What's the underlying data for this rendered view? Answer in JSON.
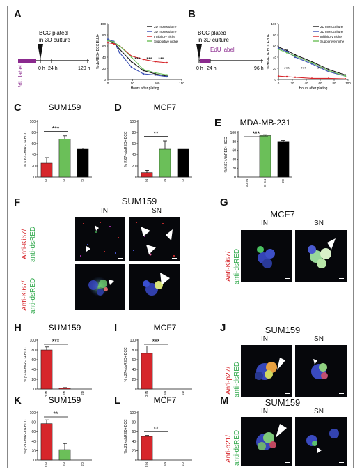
{
  "panels": {
    "A": "A",
    "B": "B",
    "C": "C",
    "D": "D",
    "E": "E",
    "F": "F",
    "G": "G",
    "H": "H",
    "I": "I",
    "J": "J",
    "K": "K",
    "L": "L",
    "M": "M"
  },
  "timeline_A": {
    "plated": "BCC plated",
    "culture": "in 3D culture",
    "edu": "EdU label",
    "ticks": [
      "0 h",
      "24 h",
      "120 h"
    ]
  },
  "timeline_B": {
    "plated": "BCC plated",
    "culture": "in 3D culture",
    "edu": "EdU label",
    "ticks": [
      "0 h",
      "24 h",
      "96 h"
    ]
  },
  "legend": [
    {
      "name": "2D monoculture",
      "color": "#1a1a1a"
    },
    {
      "name": "3D monoculture",
      "color": "#3a4fb5"
    },
    {
      "name": "Inhibitory niche",
      "color": "#d6262b"
    },
    {
      "name": "Supportive niche",
      "color": "#6bbf59"
    }
  ],
  "line_A": {
    "ylabel": "% dsRED+ BCC EdU+",
    "xlabel": "Hours after plating",
    "yticks": [
      "0",
      "20",
      "40",
      "60",
      "80",
      "100"
    ],
    "xticks": [
      "0",
      "50",
      "100",
      "150"
    ],
    "sig": "***"
  },
  "line_B": {
    "ylabel": "% dsRED+ BCC EdU+",
    "xlabel": "Hours after plating",
    "yticks": [
      "0",
      "20",
      "40",
      "60",
      "80",
      "100"
    ],
    "xticks": [
      "0",
      "20",
      "40",
      "60",
      "80",
      "100"
    ],
    "sig": "***"
  },
  "chart_data": [
    {
      "panel": "A",
      "type": "line",
      "xlabel": "Hours after plating",
      "ylabel": "% dsRED+ BCC EdU+",
      "xlim": [
        0,
        150
      ],
      "ylim": [
        0,
        100
      ],
      "series": [
        {
          "name": "2D monoculture",
          "x": [
            0,
            12,
            24,
            48,
            72,
            96,
            120
          ],
          "y": [
            70,
            66,
            54,
            32,
            16,
            10,
            6
          ]
        },
        {
          "name": "3D monoculture",
          "x": [
            0,
            12,
            24,
            48,
            72,
            96,
            120
          ],
          "y": [
            72,
            68,
            48,
            22,
            10,
            8,
            5
          ]
        },
        {
          "name": "Inhibitory niche",
          "x": [
            0,
            12,
            24,
            48,
            72,
            96,
            120
          ],
          "y": [
            66,
            64,
            60,
            42,
            36,
            32,
            30
          ]
        },
        {
          "name": "Supportive niche",
          "x": [
            0,
            12,
            24,
            48,
            72,
            96,
            120
          ],
          "y": [
            70,
            67,
            60,
            40,
            18,
            12,
            8
          ]
        }
      ]
    },
    {
      "panel": "B",
      "type": "line",
      "xlabel": "Hours after plating",
      "ylabel": "% dsRED+ BCC EdU+",
      "xlim": [
        0,
        100
      ],
      "ylim": [
        0,
        100
      ],
      "series": [
        {
          "name": "2D monoculture",
          "x": [
            0,
            12,
            24,
            48,
            72,
            96
          ],
          "y": [
            58,
            52,
            44,
            32,
            18,
            8
          ]
        },
        {
          "name": "3D monoculture",
          "x": [
            0,
            12,
            24,
            48,
            72,
            96
          ],
          "y": [
            56,
            50,
            40,
            28,
            14,
            6
          ]
        },
        {
          "name": "Inhibitory niche",
          "x": [
            0,
            12,
            24,
            48,
            72,
            96
          ],
          "y": [
            6,
            5,
            4,
            2,
            2,
            1
          ]
        },
        {
          "name": "Supportive niche",
          "x": [
            0,
            12,
            24,
            48,
            72,
            96
          ],
          "y": [
            54,
            48,
            42,
            30,
            16,
            6
          ]
        }
      ]
    },
    {
      "panel": "C",
      "type": "bar",
      "title": "SUM159",
      "ylabel": "% Ki67+/dsRED+ BCC",
      "ylim": [
        0,
        100
      ],
      "yticks": [
        "0",
        "20",
        "40",
        "60",
        "80",
        "100"
      ],
      "categories": [
        "3D IN",
        "3D SN",
        "2D"
      ],
      "values": [
        25,
        68,
        50
      ],
      "errors": [
        10,
        6,
        2
      ],
      "colors": [
        "#d6262b",
        "#6bbf59",
        "#000000"
      ],
      "sig": "***",
      "sig_between": [
        0,
        1
      ]
    },
    {
      "panel": "D",
      "type": "bar",
      "title": "MCF7",
      "ylabel": "% Ki67+/dsRED+ BCC",
      "ylim": [
        0,
        100
      ],
      "yticks": [
        "0",
        "20",
        "40",
        "60",
        "80",
        "100"
      ],
      "categories": [
        "3D IN",
        "3D SN",
        "2D"
      ],
      "values": [
        8,
        50,
        50
      ],
      "errors": [
        4,
        15,
        0
      ],
      "colors": [
        "#d6262b",
        "#6bbf59",
        "#000000"
      ],
      "sig": "**",
      "sig_between": [
        0,
        1
      ]
    },
    {
      "panel": "E",
      "type": "bar",
      "title": "MDA-MB-231",
      "ylabel": "% Ki67+/dsRED+ BCC",
      "ylim": [
        0,
        100
      ],
      "yticks": [
        "0",
        "20",
        "40",
        "60",
        "80",
        "100"
      ],
      "categories": [
        "3D IN",
        "3D SN",
        "2D"
      ],
      "values": [
        0,
        93,
        80
      ],
      "errors": [
        0,
        2,
        2
      ],
      "colors": [
        "#d6262b",
        "#6bbf59",
        "#000000"
      ],
      "sig": "***",
      "sig_between": [
        0,
        1
      ]
    },
    {
      "panel": "H",
      "type": "bar",
      "title": "SUM159",
      "ylabel": "% p27+/dsRED+ BCC",
      "ylim": [
        0,
        100
      ],
      "yticks": [
        "0",
        "20",
        "40",
        "60",
        "80",
        "100"
      ],
      "categories": [
        "3D IN",
        "3D SN",
        "2D"
      ],
      "values": [
        80,
        2,
        0
      ],
      "errors": [
        6,
        1,
        0
      ],
      "colors": [
        "#d6262b",
        "#d6262b",
        "#d6262b"
      ],
      "sig": "***",
      "sig_between": [
        0,
        1
      ]
    },
    {
      "panel": "I",
      "type": "bar",
      "title": "MCF7",
      "ylabel": "% p27+/dsRED+ BCC",
      "ylim": [
        0,
        100
      ],
      "yticks": [
        "0",
        "20",
        "40",
        "60",
        "80",
        "100"
      ],
      "categories": [
        "3D IN",
        "3D SN",
        "2D"
      ],
      "values": [
        73,
        0,
        0
      ],
      "errors": [
        15,
        0,
        0
      ],
      "colors": [
        "#d6262b",
        "#d6262b",
        "#d6262b"
      ],
      "sig": "***",
      "sig_between": [
        0,
        1
      ]
    },
    {
      "panel": "K",
      "type": "bar",
      "title": "SUM159",
      "ylabel": "% p21+/dsRED+ BCC",
      "ylim": [
        0,
        100
      ],
      "yticks": [
        "0",
        "20",
        "40",
        "60",
        "80",
        "100"
      ],
      "categories": [
        "3D IN",
        "3D SN",
        "2D"
      ],
      "values": [
        77,
        22,
        0
      ],
      "errors": [
        8,
        13,
        0
      ],
      "colors": [
        "#d6262b",
        "#6bbf59",
        "#d6262b"
      ],
      "sig": "**",
      "sig_between": [
        0,
        1
      ]
    },
    {
      "panel": "L",
      "type": "bar",
      "title": "MCF7",
      "ylabel": "% p21+/dsRED+ BCC",
      "ylim": [
        0,
        100
      ],
      "yticks": [
        "0",
        "20",
        "40",
        "60",
        "80",
        "100"
      ],
      "categories": [
        "3D IN",
        "3D SN",
        "2D"
      ],
      "values": [
        50,
        0,
        0
      ],
      "errors": [
        2,
        0,
        0
      ],
      "colors": [
        "#d6262b",
        "#d6262b",
        "#d6262b"
      ],
      "sig": "**",
      "sig_between": [
        0,
        1
      ]
    }
  ],
  "panel_F": {
    "title": "SUM159",
    "in": "IN",
    "sn": "SN",
    "stain_red": "Anti-Ki67/",
    "stain_green": "anti-dsRED"
  },
  "panel_G": {
    "title": "MCF7",
    "in": "IN",
    "sn": "SN",
    "stain_red": "Anti-Ki67/",
    "stain_green": "anti-dsRED"
  },
  "panel_J": {
    "title": "SUM159",
    "in": "IN",
    "sn": "SN",
    "stain_red": "Anti-p27/",
    "stain_green": "anti-dsRED"
  },
  "panel_M": {
    "title": "SUM159",
    "in": "IN",
    "sn": "SN",
    "stain_red": "Anti-p21/",
    "stain_green": "anti-dsRED"
  },
  "colors": {
    "red": "#d6262b",
    "green": "#6bbf59",
    "black": "#000000",
    "blue": "#3a4fb5",
    "purple": "#8b2a8e"
  }
}
